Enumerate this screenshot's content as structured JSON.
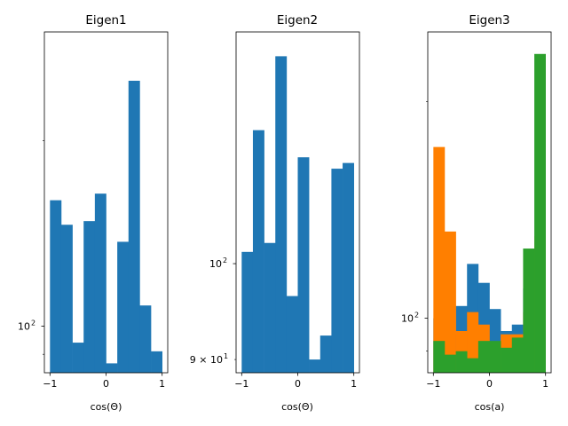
{
  "chart_data": [
    {
      "type": "bar",
      "title": "Eigen1",
      "xlabel": "cos(Θ)",
      "ylabel": "",
      "y_scale": "log",
      "xlim": [
        -1.1,
        1.1
      ],
      "ylim": [
        84,
        300
      ],
      "x_tick_labels": [
        "−1",
        "0",
        "1"
      ],
      "y_major_tick_labels": [
        "10",
        "2"
      ],
      "bin_edges": [
        -1.0,
        -0.8,
        -0.6,
        -0.4,
        -0.2,
        0.0,
        0.2,
        0.4,
        0.6,
        0.8,
        1.0
      ],
      "series": [
        {
          "color": "#1f77b4",
          "values": [
            160,
            146,
            94,
            148,
            164,
            87,
            137,
            250,
            108,
            91
          ]
        }
      ]
    },
    {
      "type": "bar",
      "title": "Eigen2",
      "xlabel": "cos(Θ)",
      "ylabel": "",
      "y_scale": "log",
      "xlim": [
        -1.1,
        1.1
      ],
      "ylim": [
        88.7,
        129
      ],
      "x_tick_labels": [
        "−1",
        "0",
        "1"
      ],
      "y_major_tick_labels": [
        "10",
        "2"
      ],
      "y_minor_tick_labels": [
        {
          "mantissa": "9 × 10",
          "exp": "1"
        }
      ],
      "bin_edges": [
        -1.0,
        -0.8,
        -0.6,
        -0.4,
        -0.2,
        0.0,
        0.2,
        0.4,
        0.6,
        0.8,
        1.0
      ],
      "series": [
        {
          "color": "#1f77b4",
          "values": [
            101.3,
            115.8,
            102.3,
            125.6,
            96.5,
            112.4,
            90.0,
            92.4,
            111.0,
            111.7
          ]
        }
      ]
    },
    {
      "type": "bar",
      "title": "Eigen3",
      "xlabel": "cos(a)",
      "ylabel": "",
      "y_scale": "log",
      "xlim": [
        -1.1,
        1.1
      ],
      "ylim": [
        84,
        250
      ],
      "x_tick_labels": [
        "−1",
        "0",
        "1"
      ],
      "y_major_tick_labels": [
        "10",
        "2"
      ],
      "bin_edges": [
        -1.0,
        -0.8,
        -0.6,
        -0.4,
        -0.2,
        0.0,
        0.2,
        0.4,
        0.6,
        0.8,
        1.0
      ],
      "series": [
        {
          "color": "#1f77b4",
          "values": [
            100,
            95,
            104,
            119,
            112,
            103,
            96,
            98,
            110,
            120
          ]
        },
        {
          "color": "#ff7f00",
          "values": [
            173,
            132,
            96,
            102,
            98,
            86,
            95,
            95,
            102,
            130
          ]
        },
        {
          "color": "#2ca02c",
          "values": [
            93,
            89,
            90,
            88,
            93,
            93,
            91,
            94,
            125,
            233
          ]
        }
      ]
    }
  ]
}
